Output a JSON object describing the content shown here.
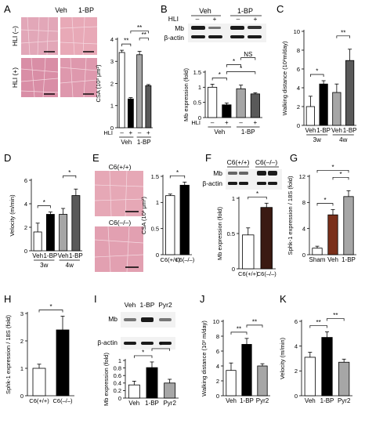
{
  "colors": {
    "white": "#ffffff",
    "black": "#000000",
    "gray": "#a6a6a6",
    "dark_gray": "#595959",
    "sham": "#ffffff",
    "veh": "#7a2f1a",
    "bp": "#a6a6a6",
    "c6_ko": "#3a1a12",
    "he_pink": "#e4a3b3",
    "he_dark": "#c87b93"
  },
  "panels": [
    {
      "letter": "A"
    },
    {
      "letter": "B"
    },
    {
      "letter": "C"
    },
    {
      "letter": "D"
    },
    {
      "letter": "E"
    },
    {
      "letter": "F"
    },
    {
      "letter": "G"
    },
    {
      "letter": "H"
    },
    {
      "letter": "I"
    },
    {
      "letter": "J"
    },
    {
      "letter": "K"
    }
  ],
  "micro_A": {
    "col_labels": [
      "Veh",
      "1-BP"
    ],
    "row_labels": [
      "HLI (–)",
      "HLI (+)"
    ]
  },
  "micro_E": {
    "labels": [
      "C6(+/+)",
      "C6(–/–)"
    ]
  },
  "blot_B": {
    "groups": [
      "Veh",
      "1-BP"
    ],
    "hli_label": "HLI",
    "hli_signs": [
      "–",
      "+",
      "–",
      "+"
    ],
    "bands": [
      "Mb",
      "β-actin"
    ]
  },
  "blot_F": {
    "groups": [
      "C6(+/+)",
      "C6(–/–)"
    ],
    "bands": [
      "Mb",
      "β-actin"
    ]
  },
  "blot_I": {
    "lanes": [
      "Veh",
      "1-BP",
      "Pyr2"
    ],
    "bands": [
      "Mb",
      "β-actin"
    ]
  },
  "chart_data": [
    {
      "panel": "A",
      "type": "bar",
      "ylabel": "CSA (10³ μm²)",
      "ylim": [
        0,
        4
      ],
      "yticks": [
        0,
        1,
        2,
        3,
        4
      ],
      "categories": [
        "Veh –",
        "Veh +",
        "1-BP –",
        "1-BP +"
      ],
      "sign_label": "HLI",
      "signs": [
        "–",
        "+",
        "–",
        "+"
      ],
      "groups": [
        {
          "label": "Veh",
          "span": [
            0,
            1
          ]
        },
        {
          "label": "1-BP",
          "span": [
            2,
            3
          ]
        }
      ],
      "values": [
        3.4,
        1.3,
        3.3,
        1.9
      ],
      "errors": [
        0.1,
        0.06,
        0.15,
        0.05
      ],
      "bar_colors": [
        "white",
        "black",
        "gray",
        "dark_gray"
      ],
      "annotations": [
        {
          "pair": [
            0,
            1
          ],
          "text": "**"
        },
        {
          "pair": [
            2,
            3
          ],
          "text": "**"
        },
        {
          "pair": [
            1,
            3
          ],
          "text": "**"
        }
      ]
    },
    {
      "panel": "B",
      "type": "bar",
      "ylabel": "Mb expression (fold)",
      "ylim": [
        0,
        1.5
      ],
      "yticks": [
        0,
        0.5,
        1,
        1.5
      ],
      "categories": [
        "Veh –",
        "Veh +",
        "1-BP –",
        "1-BP +"
      ],
      "sign_label": "HLI",
      "signs": [
        "–",
        "+",
        "–",
        "+"
      ],
      "groups": [
        {
          "label": "Veh",
          "span": [
            0,
            1
          ]
        },
        {
          "label": "1-BP",
          "span": [
            2,
            3
          ]
        }
      ],
      "values": [
        1.0,
        0.42,
        0.95,
        0.78
      ],
      "errors": [
        0.1,
        0.06,
        0.12,
        0.04
      ],
      "bar_colors": [
        "white",
        "black",
        "gray",
        "dark_gray"
      ],
      "annotations": [
        {
          "pair": [
            0,
            1
          ],
          "text": "*"
        },
        {
          "pair": [
            1,
            3
          ],
          "text": "*"
        },
        {
          "pair": [
            1,
            2
          ],
          "text": "*"
        },
        {
          "pair": [
            2,
            3
          ],
          "text": "NS"
        }
      ]
    },
    {
      "panel": "C",
      "type": "bar",
      "ylabel": "Walking distance (10²m/day)",
      "ylim": [
        0,
        10
      ],
      "yticks": [
        0,
        2,
        4,
        6,
        8,
        10
      ],
      "categories": [
        "Veh",
        "1-BP",
        "Veh",
        "1-BP"
      ],
      "groups": [
        {
          "label": "3w",
          "span": [
            0,
            1
          ]
        },
        {
          "label": "4w",
          "span": [
            2,
            3
          ]
        }
      ],
      "values": [
        2.0,
        4.4,
        3.5,
        6.9
      ],
      "errors": [
        1.1,
        0.35,
        0.9,
        1.2
      ],
      "bar_colors": [
        "white",
        "black",
        "gray",
        "dark_gray"
      ],
      "annotations": [
        {
          "pair": [
            0,
            1
          ],
          "text": "*"
        },
        {
          "pair": [
            2,
            3
          ],
          "text": "**"
        }
      ]
    },
    {
      "panel": "D",
      "type": "bar",
      "ylabel": "Velocity (m/min)",
      "ylim": [
        0,
        6
      ],
      "yticks": [
        0,
        2,
        4,
        6
      ],
      "categories": [
        "Veh",
        "1-BP",
        "Veh",
        "1-BP"
      ],
      "groups": [
        {
          "label": "3w",
          "span": [
            0,
            1
          ]
        },
        {
          "label": "4w",
          "span": [
            2,
            3
          ]
        }
      ],
      "values": [
        1.6,
        3.1,
        3.1,
        4.7
      ],
      "errors": [
        0.75,
        0.2,
        0.5,
        0.55
      ],
      "bar_colors": [
        "white",
        "black",
        "gray",
        "dark_gray"
      ],
      "annotations": [
        {
          "pair": [
            0,
            1
          ],
          "text": "*"
        },
        {
          "pair": [
            2,
            3
          ],
          "text": "*"
        }
      ]
    },
    {
      "panel": "E",
      "type": "bar",
      "ylabel": "CSA (10³ μm²)",
      "ylim": [
        0,
        1.5
      ],
      "yticks": [
        0,
        0.5,
        1,
        1.5
      ],
      "categories": [
        "C6(+/+)",
        "C6(–/–)"
      ],
      "values": [
        1.13,
        1.33
      ],
      "errors": [
        0.03,
        0.06
      ],
      "bar_colors": [
        "white",
        "black"
      ],
      "annotations": [
        {
          "pair": [
            0,
            1
          ],
          "text": "*"
        }
      ]
    },
    {
      "panel": "F",
      "type": "bar",
      "ylabel": "Mb expression (fold)",
      "ylim": [
        0,
        1
      ],
      "yticks": [
        0,
        0.5,
        1
      ],
      "categories": [
        "C6(+/+)",
        "C6(–/–)"
      ],
      "values": [
        0.48,
        0.87
      ],
      "errors": [
        0.1,
        0.06
      ],
      "bar_colors": [
        "white",
        "c6_ko"
      ],
      "annotations": [
        {
          "pair": [
            0,
            1
          ],
          "text": "*"
        }
      ]
    },
    {
      "panel": "G",
      "type": "bar",
      "ylabel": "Sphk-1 expression / 18S (fold)",
      "ylim": [
        0,
        12
      ],
      "yticks": [
        0,
        4,
        8,
        12
      ],
      "categories": [
        "Sham",
        "Veh",
        "1-BP"
      ],
      "values": [
        1.0,
        6.1,
        8.9
      ],
      "errors": [
        0.3,
        0.8,
        0.9
      ],
      "bar_colors": [
        "sham",
        "veh",
        "bp"
      ],
      "annotations": [
        {
          "pair": [
            0,
            1
          ],
          "text": "*"
        },
        {
          "pair": [
            1,
            2
          ],
          "text": "*"
        },
        {
          "pair": [
            0,
            2
          ],
          "text": "*"
        }
      ]
    },
    {
      "panel": "H",
      "type": "bar",
      "ylabel": "Sphk-1 expression / 18S (fold)",
      "ylim": [
        0,
        3
      ],
      "yticks": [
        0,
        1,
        2,
        3
      ],
      "categories": [
        "C6(+/+)",
        "C6(–/–)"
      ],
      "values": [
        1.0,
        2.4
      ],
      "errors": [
        0.15,
        0.5
      ],
      "bar_colors": [
        "white",
        "black"
      ],
      "annotations": [
        {
          "pair": [
            0,
            1
          ],
          "text": "*"
        }
      ]
    },
    {
      "panel": "I",
      "type": "bar",
      "ylabel": "Mb expression (fold)",
      "ylim": [
        0,
        1
      ],
      "yticks": [
        0,
        0.2,
        0.4,
        0.6,
        0.8,
        1
      ],
      "categories": [
        "Veh",
        "1-BP",
        "Pyr2"
      ],
      "values": [
        0.35,
        0.81,
        0.4
      ],
      "errors": [
        0.1,
        0.15,
        0.1
      ],
      "bar_colors": [
        "white",
        "black",
        "gray"
      ],
      "annotations": [
        {
          "pair": [
            0,
            1
          ],
          "text": "*"
        },
        {
          "pair": [
            1,
            2
          ],
          "text": "*"
        }
      ]
    },
    {
      "panel": "J",
      "type": "bar",
      "ylabel": "Walking distance (10² m/day)",
      "ylim": [
        0,
        10
      ],
      "yticks": [
        0,
        2,
        4,
        6,
        8,
        10
      ],
      "categories": [
        "Veh",
        "1-BP",
        "Pyr2"
      ],
      "values": [
        3.4,
        6.9,
        4.0
      ],
      "errors": [
        1.0,
        0.8,
        0.3
      ],
      "bar_colors": [
        "white",
        "black",
        "gray"
      ],
      "annotations": [
        {
          "pair": [
            0,
            1
          ],
          "text": "**"
        },
        {
          "pair": [
            1,
            2
          ],
          "text": "**"
        }
      ]
    },
    {
      "panel": "K",
      "type": "bar",
      "ylabel": "Velocity (m/min)",
      "ylim": [
        0,
        6
      ],
      "yticks": [
        0,
        2,
        4,
        6
      ],
      "categories": [
        "Veh",
        "1-BP",
        "Pyr2"
      ],
      "values": [
        3.1,
        4.7,
        2.7
      ],
      "errors": [
        0.4,
        0.45,
        0.25
      ],
      "bar_colors": [
        "white",
        "black",
        "gray"
      ],
      "annotations": [
        {
          "pair": [
            0,
            1
          ],
          "text": "**"
        },
        {
          "pair": [
            1,
            2
          ],
          "text": "**"
        }
      ]
    }
  ]
}
